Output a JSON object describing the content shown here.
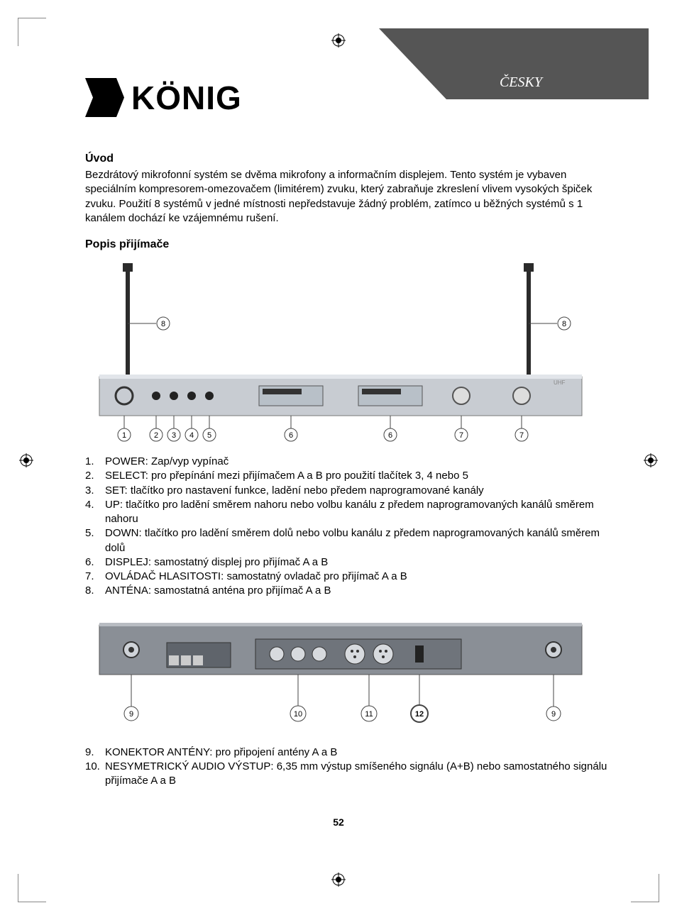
{
  "language_label": "ČESKY",
  "logo_text": "KÖNIG",
  "sections": {
    "intro_heading": "Úvod",
    "intro_body": "Bezdrátový mikrofonní systém se dvěma mikrofony a informačním displejem. Tento systém je vybaven speciálním kompresorem-omezovačem (limitérem) zvuku, který zabraňuje zkreslení vlivem vysokých špiček zvuku. Použití 8 systémů v jedné místnosti nepředstavuje žádný problém, zatímco u běžných systémů s 1 kanálem dochází ke vzájemnému rušení.",
    "receiver_heading": "Popis přijímače"
  },
  "list_front": [
    {
      "n": "1.",
      "t": "POWER: Zap/vyp vypínač"
    },
    {
      "n": "2.",
      "t": "SELECT: pro přepínání mezi přijímačem A a B pro použití tlačítek 3, 4 nebo 5"
    },
    {
      "n": "3.",
      "t": "SET: tlačítko pro nastavení funkce, ladění nebo předem naprogramované kanály"
    },
    {
      "n": "4.",
      "t": "UP: tlačítko pro ladění směrem nahoru nebo volbu kanálu z předem naprogramovaných kanálů směrem nahoru"
    },
    {
      "n": "5.",
      "t": "DOWN: tlačítko pro ladění směrem dolů nebo volbu kanálu z předem naprogramovaných kanálů směrem dolů"
    },
    {
      "n": "6.",
      "t": "DISPLEJ: samostatný displej pro přijímač A a B"
    },
    {
      "n": "7.",
      "t": "OVLÁDAČ HLASITOSTI: samostatný ovladač pro přijímač A a B"
    },
    {
      "n": "8.",
      "t": "ANTÉNA: samostatná anténa pro přijímač A a B"
    }
  ],
  "list_back": [
    {
      "n": "9.",
      "t": "KONEKTOR ANTÉNY: pro připojení antény A a B"
    },
    {
      "n": "10.",
      "t": "NESYMETRICKÝ AUDIO VÝSTUP: 6,35 mm výstup smíšeného signálu (A+B) nebo samostatného signálu přijímače A a B"
    }
  ],
  "page_number": "52",
  "figure_front": {
    "callouts": [
      "1",
      "2",
      "3",
      "4",
      "5",
      "6",
      "6",
      "7",
      "7",
      "8",
      "8"
    ],
    "panel_color": "#c8ccd2",
    "antenna_color": "#2b2b2b",
    "lcd_color": "#b8c0c8"
  },
  "figure_back": {
    "callouts": [
      "9",
      "10",
      "11",
      "12",
      "9"
    ],
    "panel_color": "#8a8f96"
  },
  "colors": {
    "text": "#000000",
    "bg": "#ffffff",
    "header_block": "#555555",
    "lang_text": "#ffffff"
  }
}
